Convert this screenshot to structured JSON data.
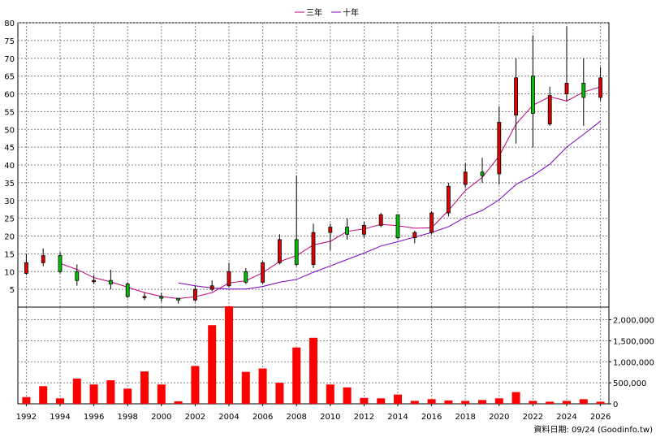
{
  "chart_data": {
    "type": "candlestick+bar",
    "legend": [
      {
        "name": "三年",
        "color": "#c0007a"
      },
      {
        "name": "十年",
        "color": "#7a00c0"
      }
    ],
    "x_ticks": [
      1992,
      1994,
      1996,
      1998,
      2000,
      2002,
      2004,
      2006,
      2008,
      2010,
      2012,
      2014,
      2016,
      2018,
      2020,
      2022,
      2024,
      2026
    ],
    "price_axis": {
      "min": 0,
      "max": 80,
      "ticks": [
        5,
        10,
        15,
        20,
        25,
        30,
        35,
        40,
        45,
        50,
        55,
        60,
        65,
        70,
        75,
        80
      ]
    },
    "volume_axis": {
      "min": 0,
      "max": 2300000,
      "ticks": [
        0,
        500000,
        1000000,
        1500000,
        2000000
      ],
      "tick_labels": [
        "0",
        "500,000",
        "1,000,000",
        "1,500,000",
        "2,000,000"
      ]
    },
    "up_color": "#e00000",
    "down_color": "#00c000",
    "candles": [
      {
        "year": 1992,
        "open": 9.5,
        "close": 12.5,
        "high": 15.0,
        "low": 9.0
      },
      {
        "year": 1993,
        "open": 12.5,
        "close": 14.5,
        "high": 16.5,
        "low": 11.5
      },
      {
        "year": 1994,
        "open": 14.5,
        "close": 10.0,
        "high": 15.5,
        "low": 9.5
      },
      {
        "year": 1995,
        "open": 10.0,
        "close": 7.5,
        "high": 12.0,
        "low": 6.0
      },
      {
        "year": 1996,
        "open": 7.5,
        "close": 7.5,
        "high": 9.0,
        "low": 6.5
      },
      {
        "year": 1997,
        "open": 7.5,
        "close": 6.5,
        "high": 10.5,
        "low": 5.0
      },
      {
        "year": 1998,
        "open": 6.5,
        "close": 3.0,
        "high": 7.0,
        "low": 2.5
      },
      {
        "year": 1999,
        "open": 3.0,
        "close": 3.0,
        "high": 4.0,
        "low": 2.0
      },
      {
        "year": 2000,
        "open": 3.0,
        "close": 2.5,
        "high": 4.0,
        "low": 1.5
      },
      {
        "year": 2001,
        "open": 2.5,
        "close": 2.0,
        "high": 2.5,
        "low": 1.0
      },
      {
        "year": 2002,
        "open": 2.0,
        "close": 5.0,
        "high": 6.0,
        "low": 1.5
      },
      {
        "year": 2003,
        "open": 5.0,
        "close": 6.0,
        "high": 7.5,
        "low": 4.5
      },
      {
        "year": 2004,
        "open": 6.0,
        "close": 10.0,
        "high": 12.5,
        "low": 5.5
      },
      {
        "year": 2005,
        "open": 10.0,
        "close": 7.0,
        "high": 11.0,
        "low": 6.5
      },
      {
        "year": 2006,
        "open": 7.0,
        "close": 12.5,
        "high": 13.0,
        "low": 6.5
      },
      {
        "year": 2007,
        "open": 12.5,
        "close": 19.0,
        "high": 20.5,
        "low": 12.0
      },
      {
        "year": 2008,
        "open": 19.0,
        "close": 12.0,
        "high": 37.0,
        "low": 11.5
      },
      {
        "year": 2009,
        "open": 12.0,
        "close": 21.0,
        "high": 23.5,
        "low": 11.0
      },
      {
        "year": 2010,
        "open": 21.0,
        "close": 22.5,
        "high": 23.5,
        "low": 16.0
      },
      {
        "year": 2011,
        "open": 22.5,
        "close": 20.5,
        "high": 25.0,
        "low": 19.0
      },
      {
        "year": 2012,
        "open": 20.5,
        "close": 23.0,
        "high": 24.0,
        "low": 19.5
      },
      {
        "year": 2013,
        "open": 23.0,
        "close": 26.0,
        "high": 26.5,
        "low": 22.5
      },
      {
        "year": 2014,
        "open": 26.0,
        "close": 19.5,
        "high": 26.0,
        "low": 19.0
      },
      {
        "year": 2015,
        "open": 19.5,
        "close": 21.0,
        "high": 21.5,
        "low": 18.0
      },
      {
        "year": 2016,
        "open": 21.0,
        "close": 26.5,
        "high": 27.0,
        "low": 20.5
      },
      {
        "year": 2017,
        "open": 26.5,
        "close": 34.0,
        "high": 35.0,
        "low": 25.5
      },
      {
        "year": 2018,
        "open": 34.5,
        "close": 38.0,
        "high": 40.5,
        "low": 33.5
      },
      {
        "year": 2019,
        "open": 38.0,
        "close": 37.0,
        "high": 42.0,
        "low": 35.0
      },
      {
        "year": 2020,
        "open": 37.5,
        "close": 52.0,
        "high": 56.5,
        "low": 34.5
      },
      {
        "year": 2021,
        "open": 54.0,
        "close": 64.5,
        "high": 70.0,
        "low": 46.0
      },
      {
        "year": 2022,
        "open": 65.0,
        "close": 54.5,
        "high": 76.5,
        "low": 45.0
      },
      {
        "year": 2023,
        "open": 51.5,
        "close": 59.5,
        "high": 62.0,
        "low": 51.0
      },
      {
        "year": 2024,
        "open": 60.0,
        "close": 63.0,
        "high": 79.0,
        "low": 58.0
      },
      {
        "year": 2025,
        "open": 63.0,
        "close": 59.0,
        "high": 70.0,
        "low": 51.0
      },
      {
        "year": 2026,
        "open": 59.0,
        "close": 64.5,
        "high": 67.5,
        "low": 58.0
      }
    ],
    "ma_series": [
      {
        "name": "三年",
        "points": [
          [
            1994,
            12.3
          ],
          [
            1995,
            10.6
          ],
          [
            1996,
            8.3
          ],
          [
            1997,
            7.1
          ],
          [
            1998,
            5.6
          ],
          [
            1999,
            4.1
          ],
          [
            2000,
            3.0
          ],
          [
            2001,
            2.4
          ],
          [
            2002,
            2.9
          ],
          [
            2003,
            4.1
          ],
          [
            2004,
            6.8
          ],
          [
            2005,
            7.4
          ],
          [
            2006,
            9.7
          ],
          [
            2007,
            12.8
          ],
          [
            2008,
            14.5
          ],
          [
            2009,
            17.5
          ],
          [
            2010,
            18.5
          ],
          [
            2011,
            21.3
          ],
          [
            2012,
            22.0
          ],
          [
            2013,
            23.3
          ],
          [
            2014,
            22.9
          ],
          [
            2015,
            22.2
          ],
          [
            2016,
            22.3
          ],
          [
            2017,
            27.2
          ],
          [
            2018,
            32.8
          ],
          [
            2019,
            36.5
          ],
          [
            2020,
            42.5
          ],
          [
            2021,
            51.5
          ],
          [
            2022,
            56.8
          ],
          [
            2023,
            59.2
          ],
          [
            2024,
            58.0
          ],
          [
            2025,
            60.5
          ],
          [
            2026,
            62.0
          ]
        ]
      },
      {
        "name": "十年",
        "points": [
          [
            2001,
            6.8
          ],
          [
            2002,
            6.0
          ],
          [
            2003,
            5.4
          ],
          [
            2004,
            5.1
          ],
          [
            2005,
            5.1
          ],
          [
            2006,
            5.8
          ],
          [
            2007,
            7.0
          ],
          [
            2008,
            7.8
          ],
          [
            2009,
            9.8
          ],
          [
            2010,
            11.6
          ],
          [
            2011,
            13.4
          ],
          [
            2012,
            15.2
          ],
          [
            2013,
            17.2
          ],
          [
            2014,
            18.4
          ],
          [
            2015,
            19.7
          ],
          [
            2016,
            21.0
          ],
          [
            2017,
            22.6
          ],
          [
            2018,
            25.3
          ],
          [
            2019,
            27.2
          ],
          [
            2020,
            30.2
          ],
          [
            2021,
            34.5
          ],
          [
            2022,
            37.0
          ],
          [
            2023,
            40.2
          ],
          [
            2024,
            45.0
          ],
          [
            2025,
            48.6
          ],
          [
            2026,
            52.3
          ]
        ]
      }
    ],
    "volume": [
      {
        "year": 1992,
        "value": 160000
      },
      {
        "year": 1993,
        "value": 420000
      },
      {
        "year": 1994,
        "value": 130000
      },
      {
        "year": 1995,
        "value": 600000
      },
      {
        "year": 1996,
        "value": 460000
      },
      {
        "year": 1997,
        "value": 560000
      },
      {
        "year": 1998,
        "value": 360000
      },
      {
        "year": 1999,
        "value": 770000
      },
      {
        "year": 2000,
        "value": 460000
      },
      {
        "year": 2001,
        "value": 60000
      },
      {
        "year": 2002,
        "value": 900000
      },
      {
        "year": 2003,
        "value": 1870000
      },
      {
        "year": 2004,
        "value": 2320000
      },
      {
        "year": 2005,
        "value": 760000
      },
      {
        "year": 2006,
        "value": 840000
      },
      {
        "year": 2007,
        "value": 500000
      },
      {
        "year": 2008,
        "value": 1340000
      },
      {
        "year": 2009,
        "value": 1570000
      },
      {
        "year": 2010,
        "value": 460000
      },
      {
        "year": 2011,
        "value": 390000
      },
      {
        "year": 2012,
        "value": 140000
      },
      {
        "year": 2013,
        "value": 130000
      },
      {
        "year": 2014,
        "value": 220000
      },
      {
        "year": 2015,
        "value": 70000
      },
      {
        "year": 2016,
        "value": 110000
      },
      {
        "year": 2017,
        "value": 80000
      },
      {
        "year": 2018,
        "value": 70000
      },
      {
        "year": 2019,
        "value": 90000
      },
      {
        "year": 2020,
        "value": 130000
      },
      {
        "year": 2021,
        "value": 280000
      },
      {
        "year": 2022,
        "value": 70000
      },
      {
        "year": 2023,
        "value": 50000
      },
      {
        "year": 2024,
        "value": 70000
      },
      {
        "year": 2025,
        "value": 110000
      },
      {
        "year": 2026,
        "value": 50000
      }
    ],
    "footer": "資料日期: 09/24  (Goodinfo.tw)"
  }
}
